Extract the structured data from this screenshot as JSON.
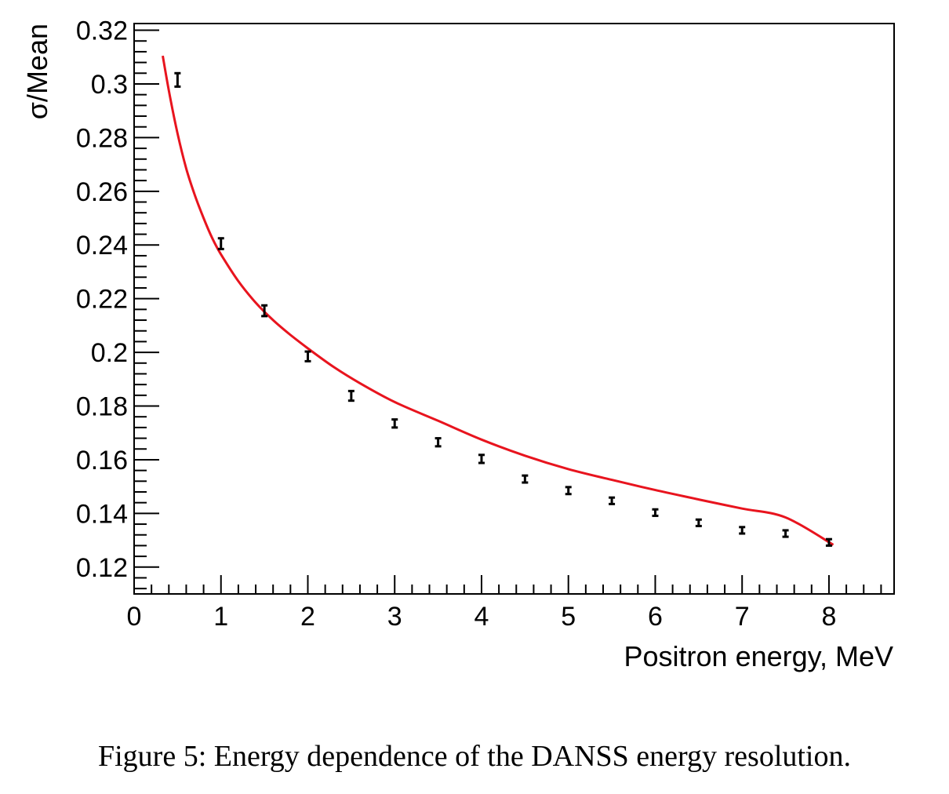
{
  "caption": "Figure 5: Energy dependence of the DANSS energy resolution.",
  "chart_data": {
    "type": "scatter",
    "xlabel": "Positron energy, MeV",
    "ylabel": "σ/Mean",
    "xlim": [
      0,
      8.75
    ],
    "ylim": [
      0.11,
      0.3225
    ],
    "x_ticks": [
      0,
      1,
      2,
      3,
      4,
      5,
      6,
      7,
      8
    ],
    "y_ticks": [
      0.12,
      0.14,
      0.16,
      0.18,
      0.2,
      0.22,
      0.24,
      0.26,
      0.28,
      0.3,
      0.32
    ],
    "y_tick_labels": [
      "0.12",
      "0.14",
      "0.16",
      "0.18",
      "0.2",
      "0.22",
      "0.24",
      "0.26",
      "0.28",
      "0.3",
      "0.32"
    ],
    "grid": false,
    "series": [
      {
        "type": "errorbar-points",
        "color": "#000000",
        "x": [
          0.5,
          1.0,
          1.5,
          2.0,
          2.5,
          3.0,
          3.5,
          4.0,
          4.5,
          5.0,
          5.5,
          6.0,
          6.5,
          7.0,
          7.5,
          8.0
        ],
        "y": [
          0.3015,
          0.2405,
          0.2155,
          0.1985,
          0.1838,
          0.1735,
          0.1665,
          0.1603,
          0.1528,
          0.1485,
          0.1447,
          0.1403,
          0.1365,
          0.1337,
          0.1325,
          0.1292
        ],
        "err": [
          0.0025,
          0.002,
          0.002,
          0.0018,
          0.0018,
          0.0015,
          0.0015,
          0.0015,
          0.0013,
          0.0013,
          0.0012,
          0.0012,
          0.0012,
          0.0012,
          0.0012,
          0.0012
        ]
      },
      {
        "type": "fit-line",
        "color": "#e8141e",
        "x": [
          0.33,
          0.4,
          0.5,
          0.6,
          0.7,
          0.8,
          0.9,
          1.0,
          1.2,
          1.4,
          1.6,
          1.8,
          2.0,
          2.3,
          2.6,
          3.0,
          3.5,
          4.0,
          4.5,
          5.0,
          5.5,
          6.0,
          6.5,
          7.0,
          7.5,
          8.05
        ],
        "y": [
          0.3105,
          0.2975,
          0.2815,
          0.2685,
          0.2585,
          0.25,
          0.2425,
          0.2365,
          0.2265,
          0.2185,
          0.212,
          0.2065,
          0.2015,
          0.1945,
          0.1885,
          0.1815,
          0.1745,
          0.1675,
          0.1615,
          0.1565,
          0.1525,
          0.1487,
          0.1452,
          0.1418,
          0.1385,
          0.1283
        ]
      }
    ]
  }
}
